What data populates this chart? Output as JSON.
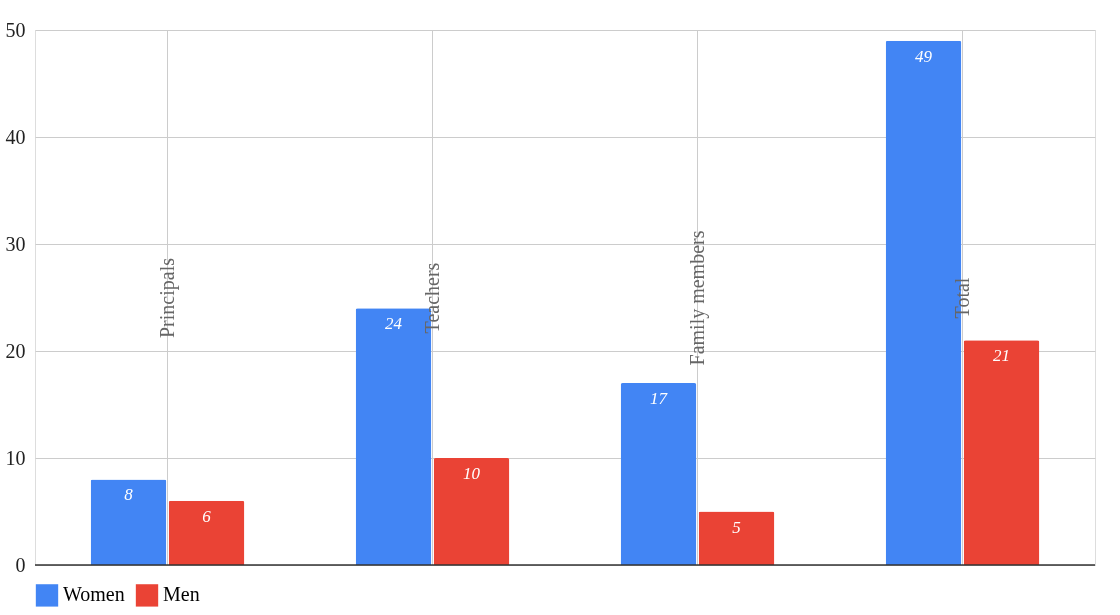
{
  "chart_data": {
    "type": "bar",
    "categories": [
      "Principals",
      "Teachers",
      "Family members",
      "Total"
    ],
    "series": [
      {
        "name": "Women",
        "color": "#4285f4",
        "values": [
          8,
          24,
          17,
          49
        ]
      },
      {
        "name": "Men",
        "color": "#ea4335",
        "values": [
          6,
          10,
          5,
          21
        ]
      }
    ],
    "ylim": [
      0,
      50
    ],
    "yticks": [
      0,
      10,
      20,
      30,
      40,
      50
    ],
    "grid": true,
    "legend": "bottom",
    "data_labels": true
  }
}
